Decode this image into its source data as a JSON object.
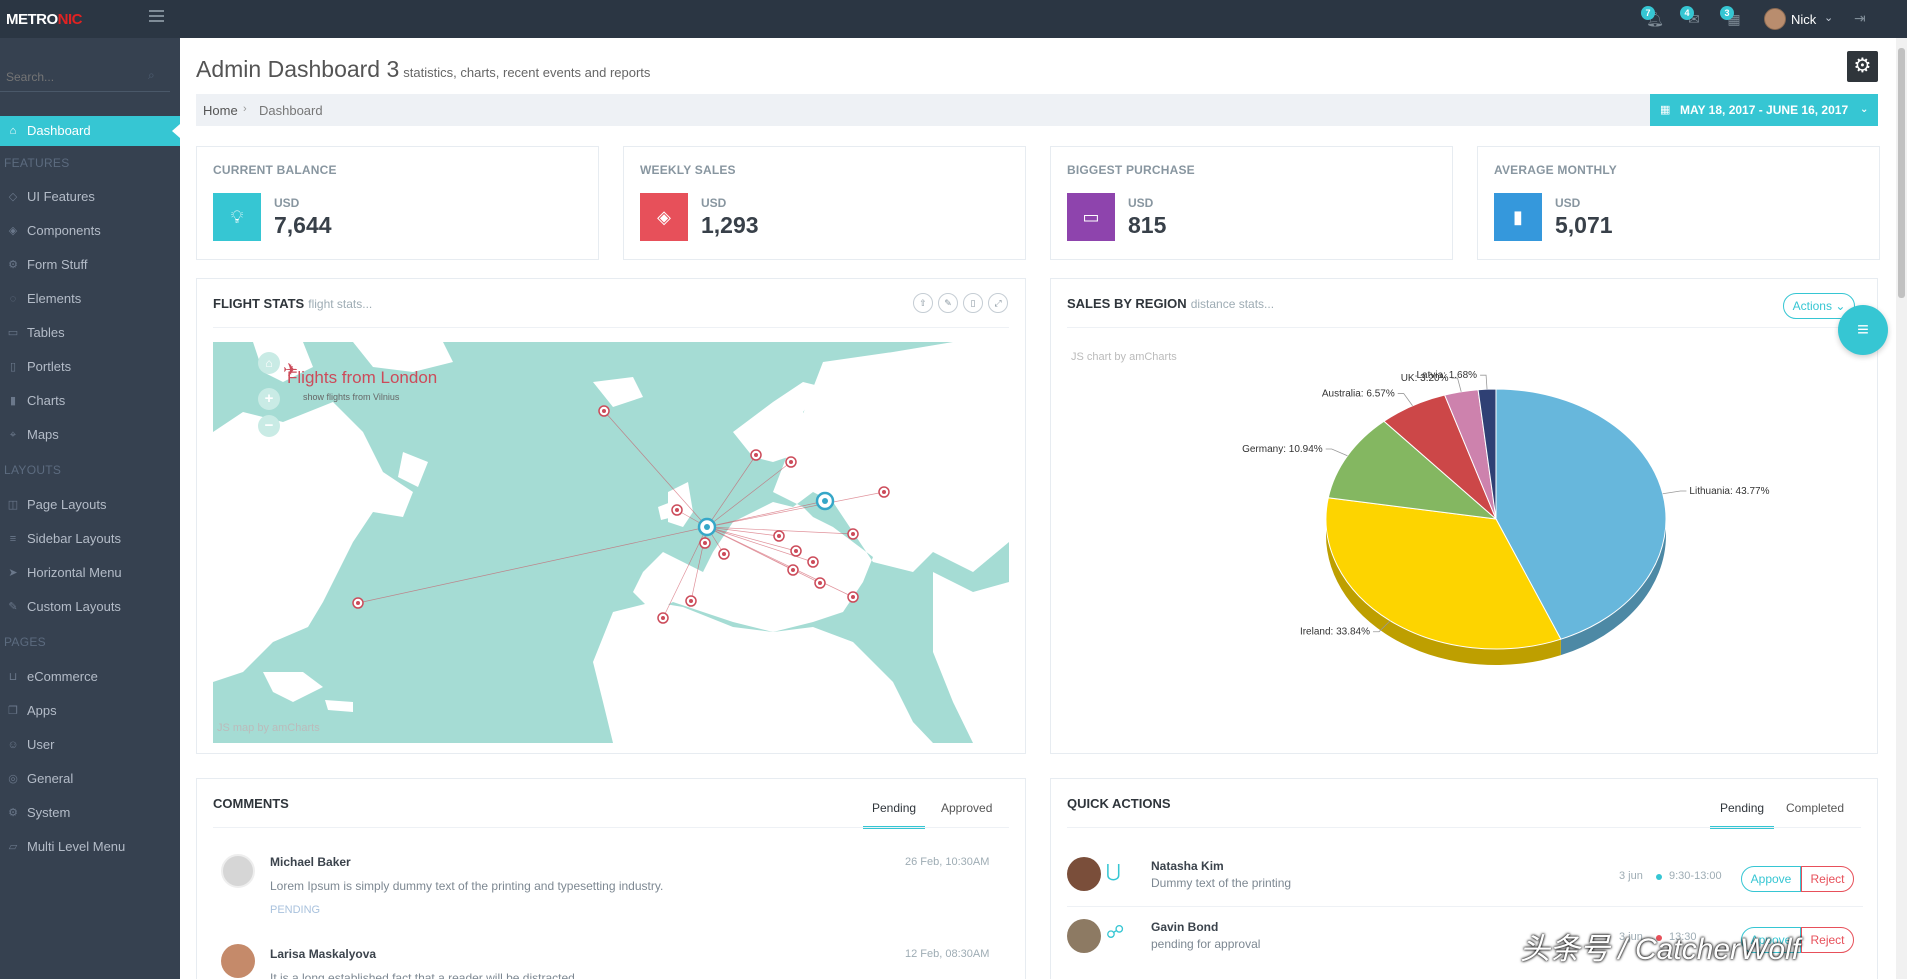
{
  "app": {
    "logo_main": "METRO",
    "logo_accent": "NIC"
  },
  "topbar": {
    "notifications_count": "7",
    "inbox_count": "4",
    "tasks_count": "3",
    "user_name": "Nick"
  },
  "sidebar": {
    "search_placeholder": "Search...",
    "active_label": "Dashboard",
    "heading_features": "FEATURES",
    "heading_layouts": "LAYOUTS",
    "heading_pages": "PAGES",
    "items": [
      {
        "label": "UI Features"
      },
      {
        "label": "Components"
      },
      {
        "label": "Form Stuff"
      },
      {
        "label": "Elements"
      },
      {
        "label": "Tables"
      },
      {
        "label": "Portlets"
      },
      {
        "label": "Charts"
      },
      {
        "label": "Maps"
      },
      {
        "label": "Page Layouts"
      },
      {
        "label": "Sidebar Layouts"
      },
      {
        "label": "Horizontal Menu"
      },
      {
        "label": "Custom Layouts"
      },
      {
        "label": "eCommerce"
      },
      {
        "label": "Apps"
      },
      {
        "label": "User"
      },
      {
        "label": "General"
      },
      {
        "label": "System"
      },
      {
        "label": "Multi Level Menu"
      }
    ]
  },
  "page": {
    "title": "Admin Dashboard 3",
    "subtitle": "statistics, charts, recent events and reports",
    "breadcrumb_home": "Home",
    "breadcrumb_current": "Dashboard",
    "date_range": "MAY 18, 2017 - JUNE 16, 2017"
  },
  "stats": [
    {
      "title": "CURRENT BALANCE",
      "currency": "USD",
      "value": "7,644",
      "color": "#36c6d3"
    },
    {
      "title": "WEEKLY SALES",
      "currency": "USD",
      "value": "1,293",
      "color": "#e7505a"
    },
    {
      "title": "BIGGEST PURCHASE",
      "currency": "USD",
      "value": "815",
      "color": "#8e44ad"
    },
    {
      "title": "AVERAGE MONTHLY",
      "currency": "USD",
      "value": "5,071",
      "color": "#3598dc"
    }
  ],
  "flight_stats": {
    "title": "FLIGHT STATS",
    "subtitle": "flight stats...",
    "map_title": "Flights from London",
    "map_subtitle": "show flights from Vilnius",
    "credit": "JS map by amCharts"
  },
  "sales_region": {
    "title": "SALES BY REGION",
    "subtitle": "distance stats...",
    "actions_label": "Actions",
    "credit": "JS chart by amCharts"
  },
  "chart_data": {
    "type": "pie",
    "categories": [
      "Lithuania",
      "Ireland",
      "Germany",
      "Australia",
      "UK",
      "Latvia"
    ],
    "values": [
      43.77,
      33.84,
      10.94,
      6.57,
      3.2,
      1.68
    ],
    "labels": [
      "Lithuania: 43.77%",
      "Ireland: 33.84%",
      "Germany: 10.94%",
      "Australia: 6.57%",
      "UK: 3.20%",
      "Latvia: 1.68%"
    ],
    "colors": [
      "#67b7dc",
      "#fdd400",
      "#84b761",
      "#cc4748",
      "#cd82ad",
      "#2f4074"
    ]
  },
  "comments": {
    "title": "COMMENTS",
    "tab_pending": "Pending",
    "tab_approved": "Approved",
    "items": [
      {
        "name": "Michael Baker",
        "date": "26 Feb, 10:30AM",
        "text": "Lorem Ipsum is simply dummy text of the printing and typesetting industry.",
        "status": "PENDING"
      },
      {
        "name": "Larisa Maskalyova",
        "date": "12 Feb, 08:30AM",
        "text": "It is a long established fact that a reader will be distracted"
      }
    ]
  },
  "quick_actions": {
    "title": "QUICK ACTIONS",
    "tab_pending": "Pending",
    "tab_completed": "Completed",
    "items": [
      {
        "name": "Natasha Kim",
        "text": "Dummy text of the printing",
        "date": "3 jun",
        "time": "9:30-13:00",
        "approve": "Appove",
        "reject": "Reject",
        "dot": "#36c6d3"
      },
      {
        "name": "Gavin Bond",
        "text": "pending for approval",
        "date": "3 jun",
        "time": "13:30",
        "approve": "Appove",
        "reject": "Reject",
        "dot": "#e7505a"
      }
    ]
  },
  "watermark": "头条号 / CatcherWolf"
}
